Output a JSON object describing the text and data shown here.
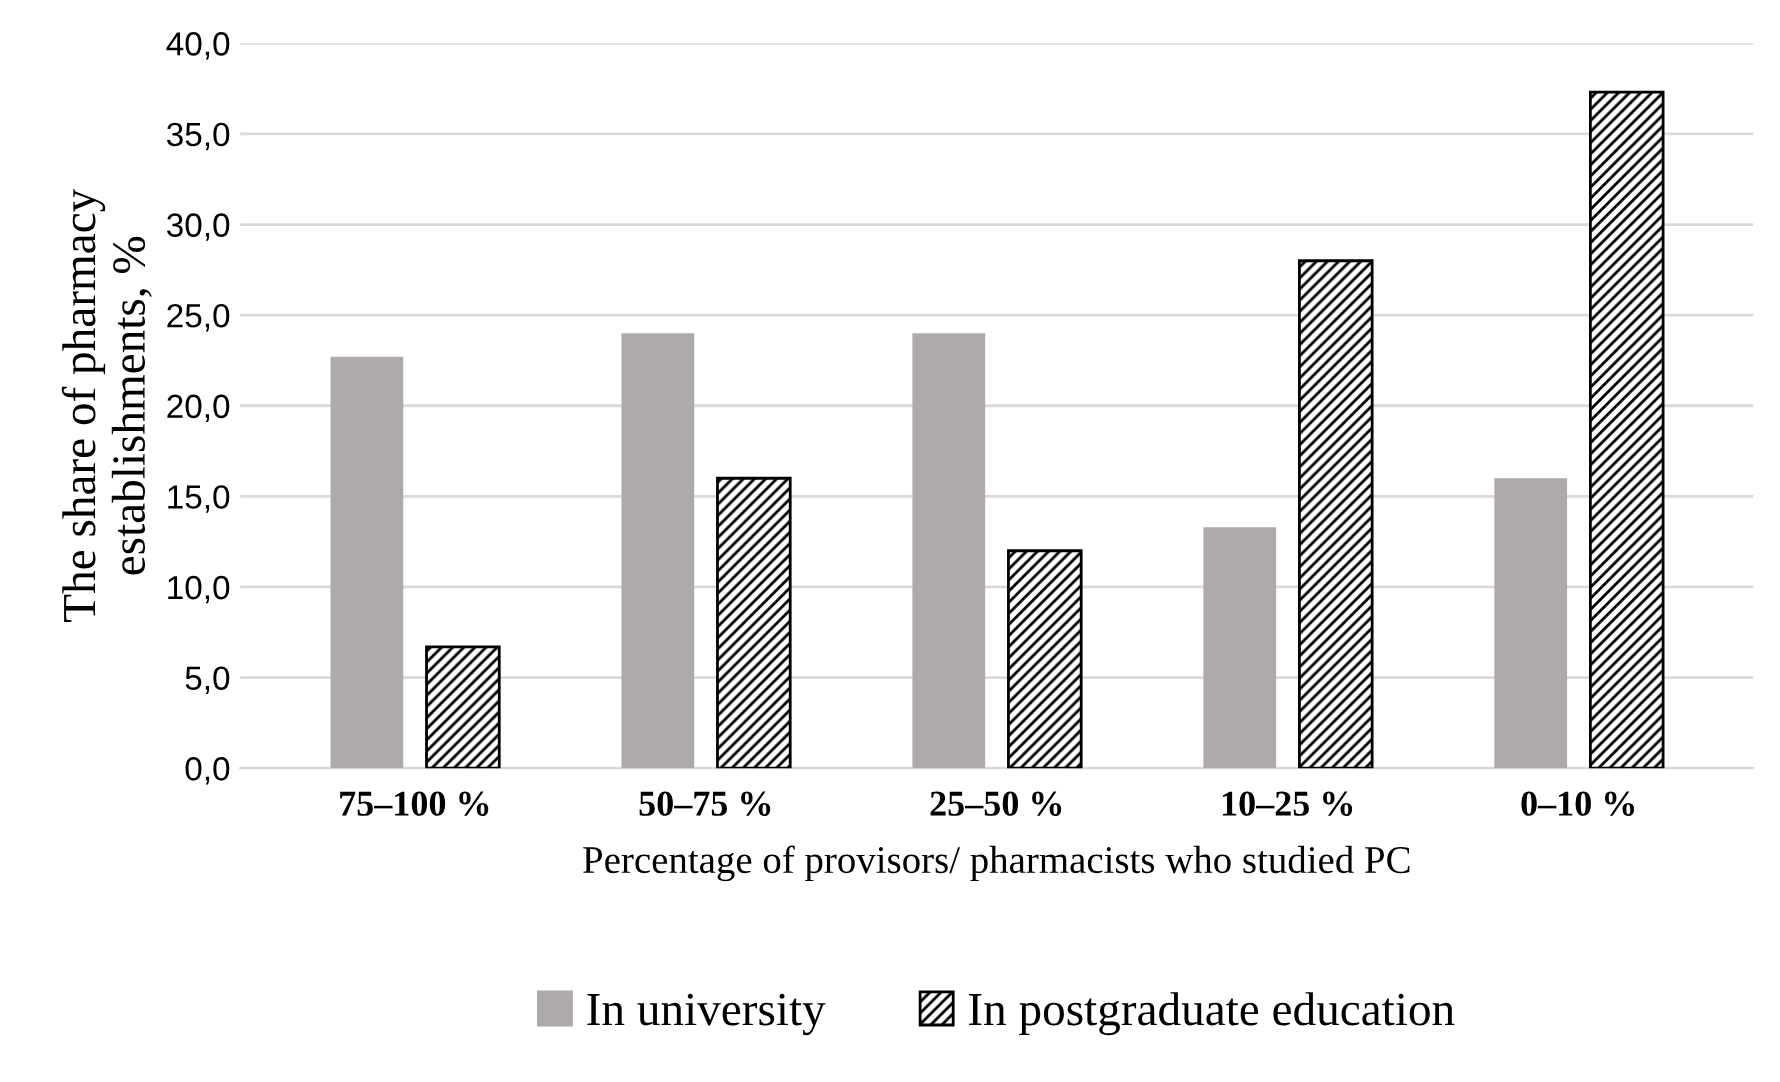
{
  "chart_data": {
    "type": "bar",
    "categories": [
      "75–100 %",
      "50–75 %",
      "25–50 %",
      "10–25 %",
      "0–10 %"
    ],
    "series": [
      {
        "name": "In university",
        "color": "#aeaaaa",
        "values": [
          22.7,
          24.0,
          24.0,
          13.3,
          16.0
        ]
      },
      {
        "name": "In postgraduate education",
        "color": "#000000",
        "values": [
          6.7,
          16.0,
          12.0,
          28.0,
          37.3
        ]
      }
    ],
    "xlabel": "Percentage of provisors/ pharmacists who studied PC",
    "ylabel": "The share of pharmacy\nestablishments, %",
    "ylim": [
      0,
      40
    ],
    "yticks": [
      {
        "value": 0,
        "label": "0,0"
      },
      {
        "value": 5,
        "label": "5,0"
      },
      {
        "value": 10,
        "label": "10,0"
      },
      {
        "value": 15,
        "label": "15,0"
      },
      {
        "value": 20,
        "label": "20,0"
      },
      {
        "value": 25,
        "label": "25,0"
      },
      {
        "value": 30,
        "label": "30,0"
      },
      {
        "value": 35,
        "label": "35,0"
      },
      {
        "value": 40,
        "label": "40,0"
      }
    ],
    "grid": "y",
    "legend": "bottom"
  }
}
